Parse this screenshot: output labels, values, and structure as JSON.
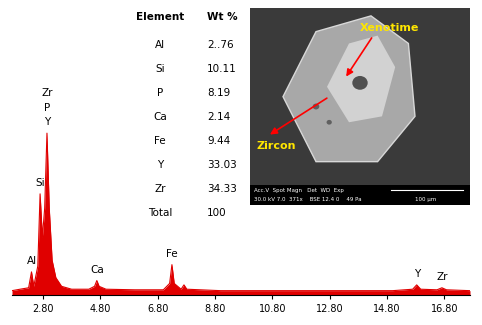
{
  "chart_data": {
    "type": "area",
    "x": [
      1.72,
      2.0,
      2.3,
      2.4,
      2.48,
      2.62,
      2.7,
      2.78,
      2.86,
      2.94,
      3.02,
      3.12,
      3.25,
      3.45,
      3.8,
      4.4,
      4.6,
      4.68,
      4.76,
      5.0,
      6.0,
      7.0,
      7.22,
      7.3,
      7.38,
      7.62,
      7.72,
      7.82,
      9.0,
      11.0,
      13.0,
      15.0,
      15.7,
      15.84,
      15.98,
      16.55,
      16.72,
      16.88,
      17.7
    ],
    "values": [
      1.5,
      2,
      2.5,
      8,
      3,
      10,
      35,
      20,
      30,
      56,
      30,
      12,
      6,
      3,
      2,
      2,
      3,
      5,
      3,
      2,
      1.8,
      1.8,
      4,
      10.5,
      4,
      2,
      3.5,
      2,
      1.5,
      1.5,
      1.5,
      1.5,
      2,
      3.5,
      2,
      1.8,
      2.5,
      1.8,
      1.5
    ],
    "color": "#e00000",
    "xlim": [
      1.72,
      17.7
    ],
    "xticks": [
      {
        "value": 2.8,
        "label": "2.80"
      },
      {
        "value": 4.8,
        "label": "4.80"
      },
      {
        "value": 6.8,
        "label": "6.80"
      },
      {
        "value": 8.8,
        "label": "8.80"
      },
      {
        "value": 10.8,
        "label": "10.80"
      },
      {
        "value": 12.8,
        "label": "12.80"
      },
      {
        "value": 14.8,
        "label": "14.80"
      },
      {
        "value": 16.8,
        "label": "16.80"
      }
    ],
    "ylim": [
      0,
      100
    ],
    "tick_labels": "x",
    "peak_labels": [
      {
        "label": "Al",
        "x": 2.4
      },
      {
        "label": "Si",
        "x": 2.7
      },
      {
        "label": "Y",
        "x": 2.94
      },
      {
        "label": "P",
        "x": 2.94
      },
      {
        "label": "Zr",
        "x": 2.94
      },
      {
        "label": "Ca",
        "x": 4.68
      },
      {
        "label": "Fe",
        "x": 7.3
      },
      {
        "label": "Y",
        "x": 15.84
      },
      {
        "label": "Zr",
        "x": 16.72
      }
    ]
  },
  "table": {
    "header": [
      "Element",
      "Wt %"
    ],
    "rows": [
      [
        "Al",
        "2..76"
      ],
      [
        "Si",
        "10.11"
      ],
      [
        "P",
        "8.19"
      ],
      [
        "Ca",
        "2.14"
      ],
      [
        "Fe",
        "9.44"
      ],
      [
        "Y",
        "33.03"
      ],
      [
        "Zr",
        "34.33"
      ],
      [
        "Total",
        "100"
      ]
    ]
  },
  "image": {
    "labels": [
      "Xenotime",
      "Zircon"
    ],
    "info_bar": [
      "Acc.V  Spot Magn   Det  WD  Exp",
      "30.0 kV 7.0  371x    BSE 12.4 0    49 Pa"
    ],
    "scale_bar": "100 µm"
  }
}
